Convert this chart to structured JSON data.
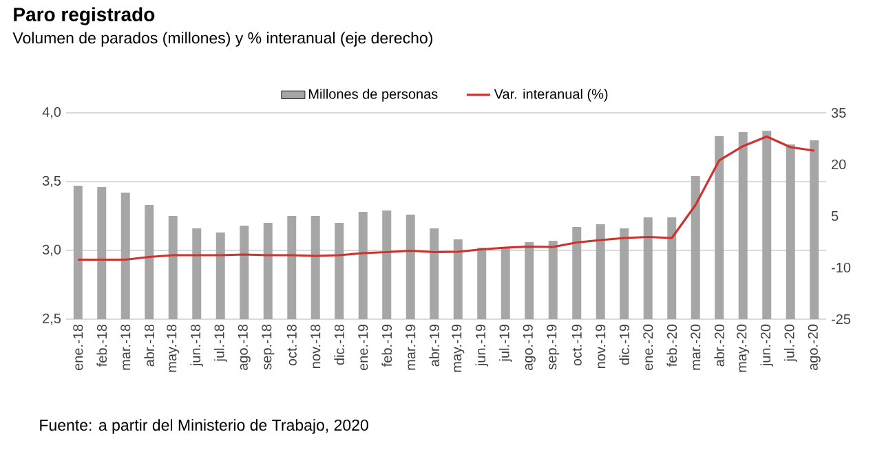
{
  "chart_data": {
    "type": "bar",
    "title": "Paro registrado",
    "subtitle": "Volumen de parados (millones) y % interanual (eje derecho)",
    "categories": [
      "ene.-18",
      "feb.-18",
      "mar.-18",
      "abr.-18",
      "may.-18",
      "jun.-18",
      "jul.-18",
      "ago.-18",
      "sep.-18",
      "oct.-18",
      "nov.-18",
      "dic.-18",
      "ene.-19",
      "feb.-19",
      "mar.-19",
      "abr.-19",
      "may.-19",
      "jun.-19",
      "jul.-19",
      "ago.-19",
      "sep.-19",
      "oct.-19",
      "nov.-19",
      "dic.-19",
      "ene.-20",
      "feb.-20",
      "mar.-20",
      "abr.-20",
      "may.-20",
      "jun.-20",
      "jul.-20",
      "ago.-20"
    ],
    "series": [
      {
        "name": "Millones de personas",
        "color": "#a6a6a6",
        "values": [
          3.47,
          3.46,
          3.42,
          3.33,
          3.25,
          3.16,
          3.13,
          3.18,
          3.2,
          3.25,
          3.25,
          3.2,
          3.28,
          3.29,
          3.26,
          3.16,
          3.08,
          3.02,
          3.02,
          3.06,
          3.07,
          3.17,
          3.19,
          3.16,
          3.24,
          3.24,
          3.54,
          3.83,
          3.86,
          3.87,
          3.77,
          3.8
        ]
      },
      {
        "name": "Var. interanual (%)",
        "type": "line",
        "axis": "y2",
        "color": "#d0312d",
        "values": [
          -7.7,
          -7.7,
          -7.7,
          -6.9,
          -6.4,
          -6.4,
          -6.4,
          -6.2,
          -6.4,
          -6.4,
          -6.6,
          -6.4,
          -5.8,
          -5.5,
          -5.1,
          -5.5,
          -5.4,
          -4.7,
          -4.2,
          -3.9,
          -4.0,
          -2.7,
          -2.0,
          -1.4,
          -1.1,
          -1.4,
          8.2,
          21.2,
          25.3,
          28.1,
          25.0,
          24.0
        ]
      }
    ],
    "ylim": [
      2.5,
      4.0
    ],
    "yticks": [
      {
        "value": 2.5,
        "label": "2,5"
      },
      {
        "value": 3.0,
        "label": "3,0"
      },
      {
        "value": 3.5,
        "label": "3,5"
      },
      {
        "value": 4.0,
        "label": "4,0"
      }
    ],
    "y2lim": [
      -25,
      35
    ],
    "y2ticks": [
      -25,
      -10,
      5,
      20,
      35
    ],
    "grid": "y",
    "legend": "top",
    "annotations": [
      "Fuente: a partir del Ministerio de Trabajo, 2020"
    ]
  }
}
